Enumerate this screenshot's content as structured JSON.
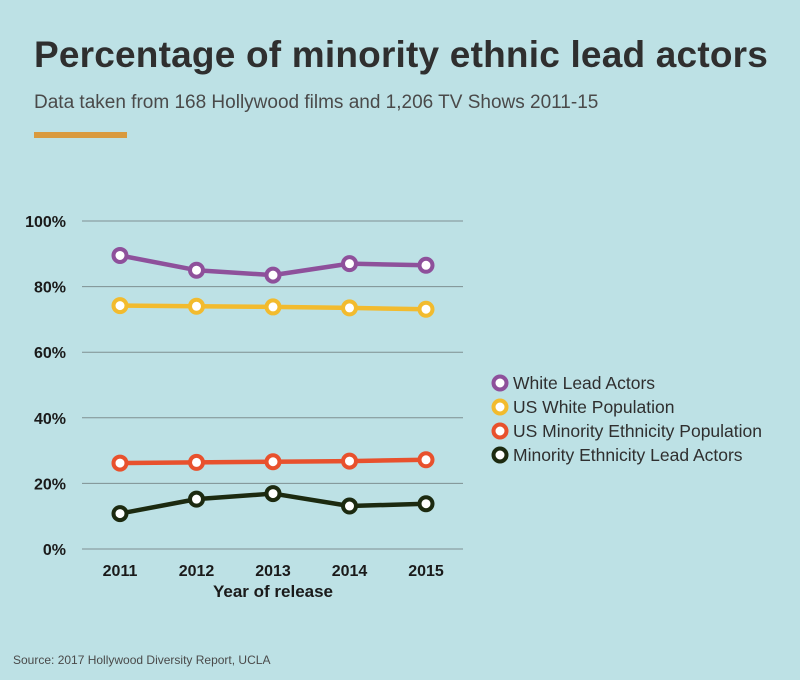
{
  "title": "Percentage of minority ethnic lead actors",
  "subtitle": "Data taken from 168 Hollywood films and 1,206 TV Shows 2011-15",
  "source": "Source: 2017 Hollywood Diversity Report, UCLA",
  "colors": {
    "background": "#bde1e5",
    "accent": "#d99a3e",
    "grid": "#7f8f92",
    "marker_fill": "#ffffff"
  },
  "chart_data": {
    "type": "line",
    "title": "Percentage of minority ethnic lead actors",
    "subtitle": "Data taken from 168 Hollywood films and 1,206 TV Shows 2011-15",
    "xlabel": "Year of release",
    "ylabel": "",
    "x": [
      "2011",
      "2012",
      "2013",
      "2014",
      "2015"
    ],
    "ylim": [
      0,
      100
    ],
    "yticks": [
      0,
      20,
      40,
      60,
      80,
      100
    ],
    "ytick_labels": [
      "0%",
      "20%",
      "40%",
      "60%",
      "80%",
      "100%"
    ],
    "grid": true,
    "legend_position": "right",
    "series": [
      {
        "name": "White Lead Actors",
        "color": "#8e509b",
        "values": [
          89.5,
          85.0,
          83.5,
          87.0,
          86.5
        ]
      },
      {
        "name": "US White Population",
        "color": "#f2bb2e",
        "values": [
          74.2,
          74.0,
          73.8,
          73.5,
          73.1
        ]
      },
      {
        "name": "US Minority Ethnicity Population",
        "color": "#e8512d",
        "values": [
          26.2,
          26.4,
          26.6,
          26.8,
          27.2
        ]
      },
      {
        "name": "Minority Ethnicity Lead Actors",
        "color": "#1c2a10",
        "values": [
          10.8,
          15.2,
          16.9,
          13.1,
          13.8
        ]
      }
    ]
  }
}
